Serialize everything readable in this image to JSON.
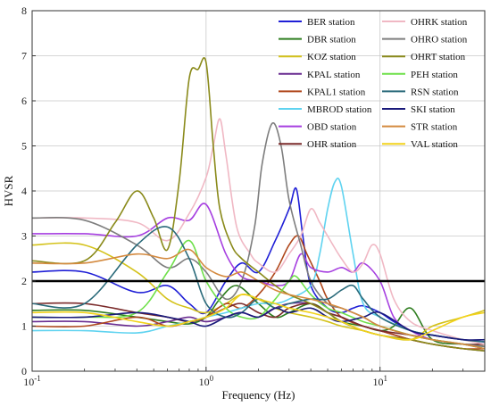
{
  "chart_data": {
    "type": "line",
    "title": "",
    "xlabel": "Frequency (Hz)",
    "ylabel": "HVSR",
    "xscale": "log",
    "xlim": [
      0.1,
      40
    ],
    "ylim": [
      0,
      8
    ],
    "grid": true,
    "legend_placement": "top-right",
    "x_ticks": [
      {
        "value": 0.1,
        "base": "10",
        "exp": "-1"
      },
      {
        "value": 1,
        "base": "10",
        "exp": "0"
      },
      {
        "value": 10,
        "base": "10",
        "exp": "1"
      }
    ],
    "y_ticks": [
      0,
      1,
      2,
      3,
      4,
      5,
      6,
      7,
      8
    ],
    "reference_line": {
      "y": 2,
      "color": "#000000"
    },
    "series": [
      {
        "name": "BER station",
        "color": "#1f1fd6",
        "x": [
          0.1,
          0.2,
          0.4,
          0.6,
          0.8,
          1,
          1.3,
          1.6,
          2,
          2.5,
          3,
          3.3,
          3.6,
          4,
          5,
          6,
          7,
          8,
          10,
          12,
          15,
          20,
          30,
          40
        ],
        "y": [
          2.2,
          2.2,
          1.75,
          1.9,
          1.5,
          1.3,
          2.0,
          2.4,
          2.2,
          2.9,
          3.6,
          4.05,
          3.0,
          1.9,
          1.4,
          1.3,
          1.4,
          1.45,
          1.3,
          1.1,
          0.9,
          0.8,
          0.7,
          0.65
        ]
      },
      {
        "name": "DBR station",
        "color": "#2e7d1f",
        "x": [
          0.1,
          0.2,
          0.4,
          0.6,
          0.8,
          1,
          1.2,
          1.5,
          2,
          2.5,
          3,
          4,
          5,
          6,
          8,
          10,
          12,
          15,
          20,
          30,
          40
        ],
        "y": [
          1.35,
          1.35,
          1.2,
          1.1,
          1.05,
          1.2,
          1.6,
          1.9,
          1.5,
          1.2,
          1.3,
          1.5,
          1.3,
          1.1,
          1.0,
          0.9,
          1.0,
          1.4,
          0.7,
          0.6,
          0.55
        ]
      },
      {
        "name": "KOZ station",
        "color": "#d4c21a",
        "x": [
          0.1,
          0.2,
          0.4,
          0.6,
          0.8,
          1,
          1.3,
          1.6,
          2,
          2.5,
          3,
          4,
          5,
          6,
          8,
          10,
          15,
          20,
          30,
          40
        ],
        "y": [
          2.8,
          2.8,
          2.2,
          1.6,
          1.4,
          1.3,
          1.5,
          1.7,
          1.6,
          1.4,
          1.3,
          1.2,
          1.1,
          1.0,
          0.9,
          0.8,
          0.7,
          1.0,
          1.2,
          1.35
        ]
      },
      {
        "name": "KPAL station",
        "color": "#6a2d91",
        "x": [
          0.1,
          0.2,
          0.4,
          0.6,
          0.8,
          1,
          1.3,
          1.6,
          2,
          2.5,
          3,
          4,
          5,
          6,
          8,
          10,
          15,
          20,
          30,
          40
        ],
        "y": [
          1.1,
          1.1,
          1.0,
          1.1,
          1.2,
          1.1,
          1.2,
          1.3,
          1.2,
          1.4,
          1.5,
          1.5,
          1.3,
          1.2,
          1.0,
          0.9,
          0.7,
          0.6,
          0.5,
          0.45
        ]
      },
      {
        "name": "KPAL1 station",
        "color": "#b0481c",
        "x": [
          0.1,
          0.2,
          0.4,
          0.6,
          0.8,
          1,
          1.3,
          1.6,
          2,
          2.5,
          3,
          3.4,
          3.8,
          4.5,
          5,
          6,
          8,
          10,
          15,
          20,
          30,
          40
        ],
        "y": [
          1.0,
          1.0,
          1.2,
          1.0,
          1.1,
          1.2,
          1.5,
          1.4,
          1.7,
          2.2,
          2.8,
          3.0,
          2.6,
          2.0,
          1.6,
          1.2,
          1.0,
          0.9,
          0.7,
          0.6,
          0.5,
          0.5
        ]
      },
      {
        "name": "MBROD station",
        "color": "#5fd3f0",
        "x": [
          0.1,
          0.2,
          0.4,
          0.6,
          0.8,
          1,
          1.3,
          1.6,
          2,
          2.5,
          3,
          4,
          4.5,
          5,
          5.5,
          6,
          7,
          8,
          10,
          15,
          20,
          30,
          40
        ],
        "y": [
          0.9,
          0.9,
          0.85,
          1.0,
          1.1,
          1.2,
          1.3,
          1.4,
          1.5,
          1.5,
          1.6,
          1.9,
          2.6,
          3.6,
          4.2,
          4.1,
          2.6,
          1.5,
          1.2,
          0.9,
          0.8,
          0.7,
          0.6
        ]
      },
      {
        "name": "OBD station",
        "color": "#a63fe0",
        "x": [
          0.1,
          0.2,
          0.4,
          0.6,
          0.8,
          1,
          1.3,
          1.6,
          2,
          2.5,
          3,
          3.5,
          4,
          5,
          6,
          7,
          8,
          10,
          12,
          15,
          20,
          30,
          40
        ],
        "y": [
          3.05,
          3.05,
          3.0,
          3.4,
          3.35,
          3.7,
          2.6,
          2.1,
          2.0,
          1.9,
          2.0,
          2.6,
          2.3,
          2.2,
          2.3,
          2.2,
          2.4,
          2.0,
          1.2,
          0.9,
          0.7,
          0.6,
          0.5
        ]
      },
      {
        "name": "OHR station",
        "color": "#7a2a2a",
        "x": [
          0.1,
          0.2,
          0.4,
          0.6,
          0.8,
          1,
          1.3,
          1.6,
          2,
          2.5,
          3,
          4,
          5,
          6,
          8,
          10,
          15,
          20,
          30,
          40
        ],
        "y": [
          1.5,
          1.5,
          1.3,
          1.2,
          1.1,
          1.2,
          1.4,
          1.5,
          1.3,
          1.2,
          1.4,
          1.5,
          1.3,
          1.2,
          1.0,
          0.9,
          0.8,
          0.7,
          0.6,
          0.6
        ]
      },
      {
        "name": "OHRK station",
        "color": "#f0b8c4",
        "x": [
          0.1,
          0.2,
          0.4,
          0.6,
          0.8,
          1,
          1.1,
          1.2,
          1.3,
          1.5,
          1.8,
          2,
          2.5,
          3,
          3.5,
          4,
          4.5,
          5,
          6,
          7,
          8,
          9,
          10,
          12,
          15,
          20,
          30,
          40
        ],
        "y": [
          3.4,
          3.4,
          3.3,
          2.9,
          3.5,
          4.3,
          5.0,
          5.6,
          4.8,
          3.2,
          2.6,
          2.4,
          2.2,
          2.6,
          3.0,
          3.6,
          3.3,
          3.0,
          2.5,
          2.2,
          2.4,
          2.8,
          2.6,
          1.6,
          1.1,
          0.9,
          0.7,
          0.6
        ]
      },
      {
        "name": "OHRO station",
        "color": "#7d7d7d",
        "x": [
          0.1,
          0.2,
          0.4,
          0.6,
          0.8,
          1,
          1.3,
          1.6,
          1.9,
          2.1,
          2.4,
          2.7,
          3,
          3.5,
          4,
          5,
          6,
          8,
          10,
          15,
          20,
          30,
          40
        ],
        "y": [
          3.4,
          3.35,
          2.8,
          2.3,
          2.5,
          2.2,
          1.6,
          2.0,
          3.2,
          4.6,
          5.5,
          5.0,
          3.8,
          2.8,
          2.0,
          1.5,
          1.4,
          1.2,
          1.0,
          0.8,
          0.7,
          0.6,
          0.55
        ]
      },
      {
        "name": "OHRT station",
        "color": "#8a8a1a",
        "x": [
          0.1,
          0.2,
          0.3,
          0.4,
          0.5,
          0.6,
          0.7,
          0.8,
          0.9,
          1,
          1.1,
          1.2,
          1.4,
          1.6,
          2,
          2.5,
          3,
          4,
          5,
          6,
          8,
          10,
          15,
          20,
          30,
          40
        ],
        "y": [
          2.45,
          2.45,
          3.3,
          4.0,
          3.4,
          2.7,
          4.2,
          6.5,
          6.7,
          6.85,
          5.0,
          3.6,
          2.8,
          2.5,
          2.2,
          1.9,
          1.7,
          1.5,
          1.3,
          1.1,
          0.9,
          0.8,
          0.7,
          0.6,
          0.5,
          0.45
        ]
      },
      {
        "name": "PEH station",
        "color": "#6fe04a",
        "x": [
          0.1,
          0.2,
          0.4,
          0.6,
          0.8,
          1,
          1.3,
          1.6,
          2,
          2.5,
          3,
          3.3,
          4,
          5,
          6,
          8,
          10,
          15,
          20,
          30,
          40
        ],
        "y": [
          1.2,
          1.2,
          1.3,
          2.2,
          2.9,
          2.0,
          1.4,
          1.2,
          1.2,
          1.6,
          2.0,
          2.1,
          1.7,
          1.4,
          1.3,
          1.1,
          1.0,
          0.8,
          0.7,
          0.6,
          0.5
        ]
      },
      {
        "name": "RSN station",
        "color": "#2a6a7a",
        "x": [
          0.1,
          0.2,
          0.4,
          0.6,
          0.8,
          1,
          1.3,
          1.6,
          2,
          2.5,
          3,
          4,
          5,
          6,
          7,
          8,
          10,
          15,
          20,
          30,
          40
        ],
        "y": [
          1.5,
          1.5,
          2.8,
          3.2,
          2.5,
          1.5,
          1.2,
          1.3,
          1.6,
          1.4,
          1.5,
          1.6,
          1.6,
          1.8,
          1.9,
          1.6,
          1.2,
          0.9,
          0.8,
          0.7,
          0.65
        ]
      },
      {
        "name": "SKI station",
        "color": "#1a1a7a",
        "x": [
          0.1,
          0.2,
          0.4,
          0.6,
          0.8,
          1,
          1.3,
          1.6,
          2,
          2.5,
          3,
          4,
          5,
          6,
          8,
          10,
          15,
          20,
          30,
          40
        ],
        "y": [
          1.2,
          1.2,
          1.3,
          1.2,
          1.1,
          1.0,
          1.2,
          1.3,
          1.2,
          1.4,
          1.3,
          1.4,
          1.2,
          1.1,
          1.2,
          1.3,
          0.9,
          0.8,
          0.7,
          0.7
        ]
      },
      {
        "name": "STR station",
        "color": "#d48a3f",
        "x": [
          0.1,
          0.2,
          0.4,
          0.6,
          0.8,
          1,
          1.3,
          1.6,
          2,
          2.5,
          3,
          4,
          5,
          6,
          8,
          10,
          15,
          20,
          30,
          40
        ],
        "y": [
          2.4,
          2.4,
          2.6,
          2.5,
          2.7,
          2.3,
          2.1,
          2.2,
          2.0,
          1.8,
          1.7,
          1.6,
          1.5,
          1.4,
          1.2,
          1.0,
          0.8,
          0.7,
          0.6,
          0.5
        ]
      },
      {
        "name": "VAL station",
        "color": "#f2d21a",
        "x": [
          0.1,
          0.2,
          0.4,
          0.6,
          0.8,
          1,
          1.3,
          1.6,
          2,
          2.5,
          3,
          4,
          5,
          6,
          8,
          10,
          15,
          20,
          30,
          40
        ],
        "y": [
          1.3,
          1.3,
          1.1,
          1.0,
          1.1,
          1.2,
          1.4,
          1.7,
          1.6,
          1.5,
          1.4,
          1.3,
          1.2,
          1.1,
          0.9,
          0.8,
          0.7,
          0.9,
          1.2,
          1.3
        ]
      }
    ]
  }
}
